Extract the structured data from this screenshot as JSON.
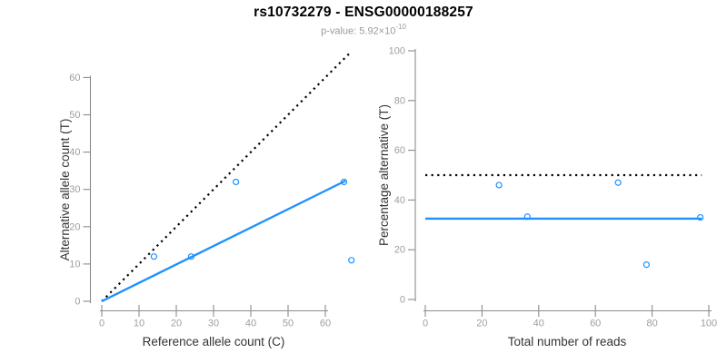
{
  "header": {
    "title": "rs10732279 - ENSG00000188257",
    "pvalue_label": "p-value: 5.92×10",
    "pvalue_exponent": "-10"
  },
  "colors": {
    "accent_blue": "#1e90ff",
    "dotted_line": "#000000",
    "axis_line": "#8c8c8c",
    "tick_label": "#9aa0a6",
    "axis_title": "#333333",
    "subtitle": "#9a9a9a"
  },
  "chart_data": [
    {
      "type": "scatter",
      "position": "left",
      "title": "",
      "xlabel": "Reference allele count (C)",
      "ylabel": "Alternative allele count (T)",
      "xlim": [
        0,
        67
      ],
      "ylim": [
        0,
        67
      ],
      "xticks": [
        0,
        10,
        20,
        30,
        40,
        50,
        60
      ],
      "yticks": [
        0,
        10,
        20,
        30,
        40,
        50,
        60
      ],
      "grid": false,
      "legend_position": "none",
      "points": [
        [
          14,
          12
        ],
        [
          24,
          12
        ],
        [
          36,
          32
        ],
        [
          65,
          32
        ],
        [
          67,
          11
        ]
      ],
      "lines": [
        {
          "name": "identity-dotted-line",
          "style": "dotted",
          "color": "black",
          "x1": 0,
          "y1": 0,
          "x2": 67,
          "y2": 67
        },
        {
          "name": "fitted-ratio-line",
          "style": "solid",
          "color": "blue",
          "x1": 0,
          "y1": 0,
          "x2": 65.4,
          "y2": 32.3
        }
      ]
    },
    {
      "type": "scatter",
      "position": "right",
      "title": "",
      "xlabel": "Total number of reads",
      "ylabel": "Percentage alternative (T)",
      "xlim": [
        0,
        100
      ],
      "ylim": [
        0,
        100
      ],
      "xticks": [
        0,
        20,
        40,
        60,
        80,
        100
      ],
      "yticks": [
        0,
        20,
        40,
        60,
        80,
        100
      ],
      "grid": false,
      "legend_position": "none",
      "points": [
        [
          26,
          46
        ],
        [
          36,
          33.3
        ],
        [
          68,
          47
        ],
        [
          78,
          14
        ],
        [
          97,
          33
        ]
      ],
      "lines": [
        {
          "name": "fifty-percent-dotted-line",
          "style": "dotted",
          "color": "black",
          "x1": 0,
          "y1": 50,
          "x2": 97.5,
          "y2": 50
        },
        {
          "name": "fitted-percentage-line",
          "style": "solid",
          "color": "blue",
          "x1": 0,
          "y1": 32.5,
          "x2": 97.5,
          "y2": 32.5
        }
      ]
    }
  ]
}
